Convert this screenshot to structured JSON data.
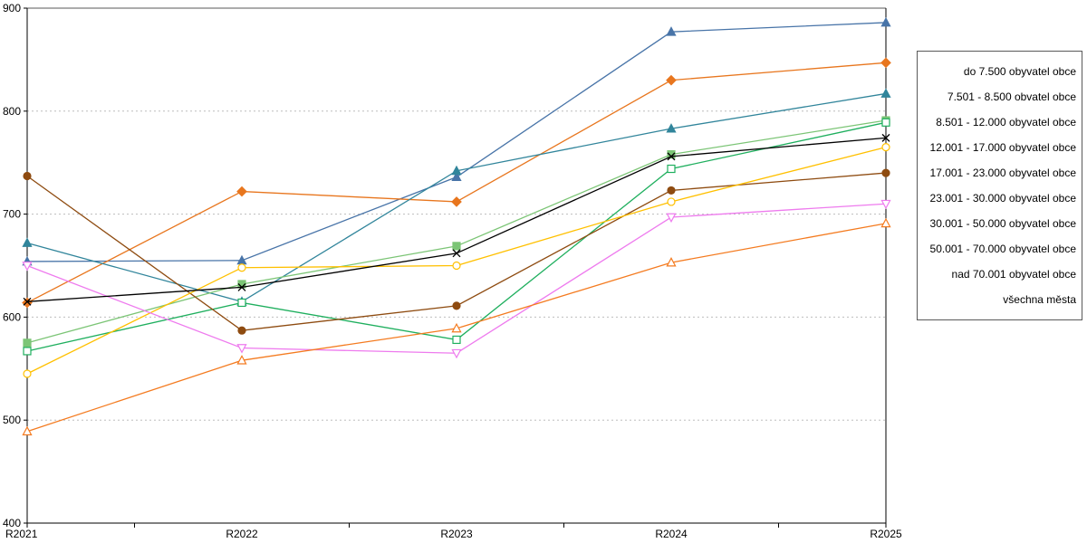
{
  "chart_data": {
    "type": "line",
    "title": "",
    "xlabel": "",
    "ylabel": "",
    "categories": [
      "R2021",
      "R2022",
      "R2023",
      "R2024",
      "R2025"
    ],
    "ylim": [
      400,
      900
    ],
    "ytick_step": 100,
    "grid": "dotted-horizontal",
    "legend_position": "right",
    "axis_color": "#000000",
    "gridline_color": "#bdbdbd",
    "series": [
      {
        "name": "do 7.500 obyvatel obce",
        "color": "#4874A8",
        "marker": "triangle-up",
        "filled": true,
        "values": [
          654,
          655,
          736,
          877,
          886
        ]
      },
      {
        "name": "7.501 - 8.500 obvatel obce",
        "color": "#E8761E",
        "marker": "diamond",
        "filled": true,
        "values": [
          614,
          722,
          712,
          830,
          847
        ]
      },
      {
        "name": "8.501 - 12.000 obyvatel obce",
        "color": "#31859B",
        "marker": "triangle-up",
        "filled": true,
        "values": [
          672,
          615,
          742,
          783,
          817
        ]
      },
      {
        "name": "12.001 - 17.000 obyvatel obce",
        "color": "#7CC576",
        "marker": "square",
        "filled": true,
        "values": [
          575,
          632,
          669,
          758,
          791
        ]
      },
      {
        "name": "17.001 - 23.000 obyvatel obce",
        "color": "#1FAF5E",
        "marker": "square",
        "filled": false,
        "values": [
          567,
          614,
          578,
          744,
          789
        ]
      },
      {
        "name": "23.001 - 30.000 obyvatel obce",
        "color": "#8E4B10",
        "marker": "circle",
        "filled": true,
        "values": [
          737,
          587,
          611,
          723,
          740
        ]
      },
      {
        "name": "30.001 - 50.000 obyvatel obce",
        "color": "#FFC000",
        "marker": "circle",
        "filled": false,
        "values": [
          545,
          648,
          650,
          712,
          765
        ]
      },
      {
        "name": "50.001 - 70.000 obyvatel obce",
        "color": "#EE7BEE",
        "marker": "triangle-down",
        "filled": false,
        "values": [
          650,
          570,
          565,
          697,
          710
        ]
      },
      {
        "name": "nad 70.001 obyvatel obce",
        "color": "#F47B20",
        "marker": "triangle-up",
        "filled": false,
        "values": [
          489,
          558,
          589,
          653,
          691
        ]
      },
      {
        "name": "všechna města",
        "color": "#000000",
        "marker": "x",
        "filled": true,
        "values": [
          615,
          629,
          662,
          756,
          774
        ]
      }
    ]
  }
}
